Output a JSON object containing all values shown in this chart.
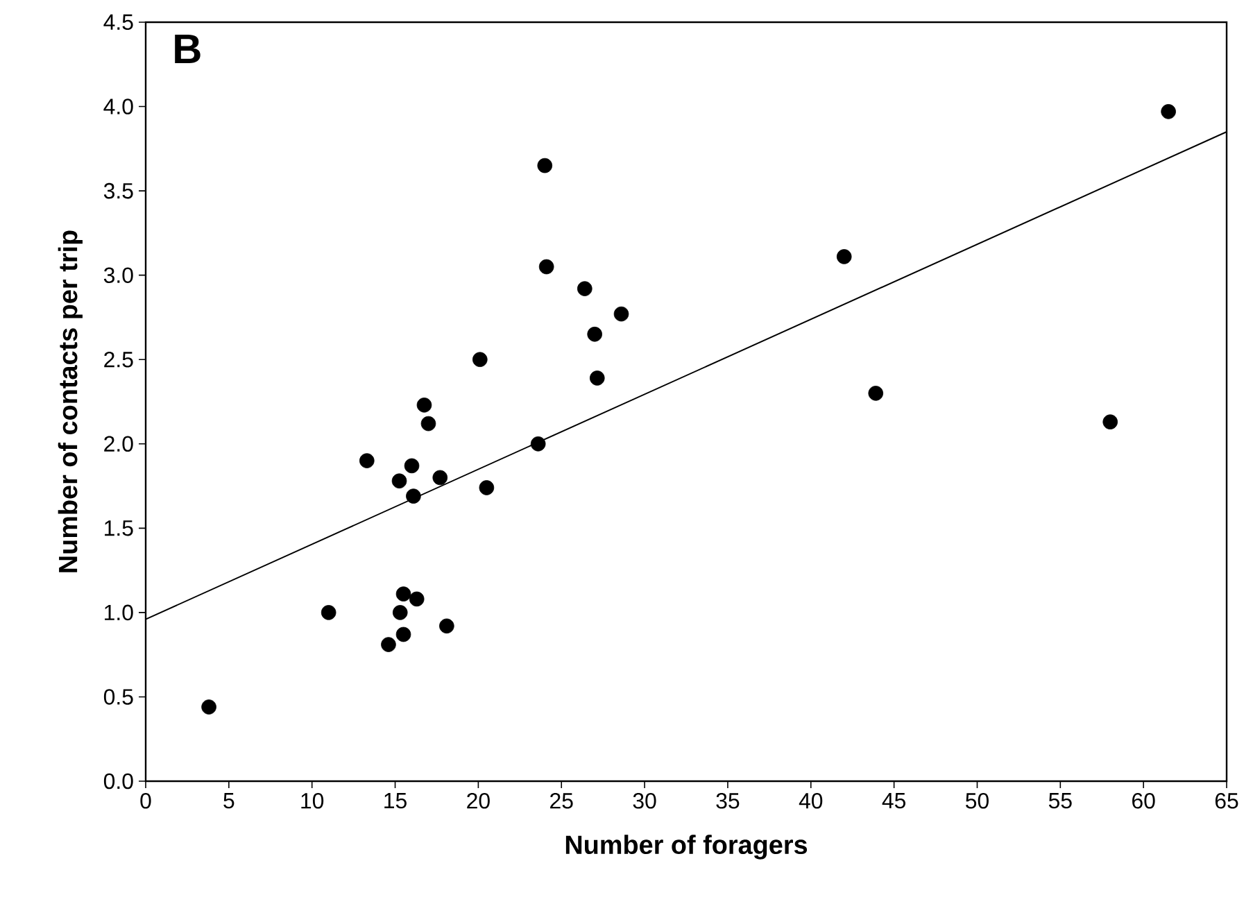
{
  "chart_data": {
    "type": "scatter",
    "xlabel": "Number of foragers",
    "ylabel": "Number of contacts per trip",
    "annotations": [
      "B"
    ],
    "xlim": [
      0,
      65
    ],
    "xticks": [
      0,
      5,
      10,
      15,
      20,
      25,
      30,
      35,
      40,
      45,
      50,
      55,
      60,
      65
    ],
    "ylim": [
      0,
      4.5
    ],
    "yticks": [
      {
        "value": 0,
        "label": "0.0"
      },
      0.5,
      {
        "value": 1,
        "label": "1.0"
      },
      1.5,
      {
        "value": 2,
        "label": "2.0"
      },
      2.5,
      {
        "value": 3,
        "label": "3.0"
      },
      3.5,
      {
        "value": 4,
        "label": "4.0"
      },
      4.5
    ],
    "grid": false,
    "series": [
      {
        "color": "#000000",
        "marker": "circle",
        "x": [
          3.8,
          11.0,
          14.6,
          15.5,
          15.3,
          15.5,
          16.3,
          18.1,
          13.3,
          15.25,
          16.0,
          16.1,
          17.7,
          16.75,
          17.0,
          20.1,
          20.5,
          24.0,
          24.1,
          26.4,
          28.6,
          27.0,
          27.15,
          23.6,
          42.0,
          43.9,
          58.0,
          61.5
        ],
        "values": [
          0.44,
          1.0,
          0.81,
          0.87,
          1.0,
          1.11,
          1.08,
          0.92,
          1.9,
          1.78,
          1.87,
          1.69,
          1.8,
          2.23,
          2.12,
          2.5,
          1.74,
          3.65,
          3.05,
          2.92,
          2.77,
          2.65,
          2.39,
          2.0,
          3.11,
          2.3,
          2.13,
          3.97
        ]
      },
      {
        "type": "line",
        "color": "#000000",
        "marker": "none",
        "line_style": "solid",
        "x": [
          0,
          65
        ],
        "values": [
          0.96,
          3.85
        ]
      }
    ]
  }
}
